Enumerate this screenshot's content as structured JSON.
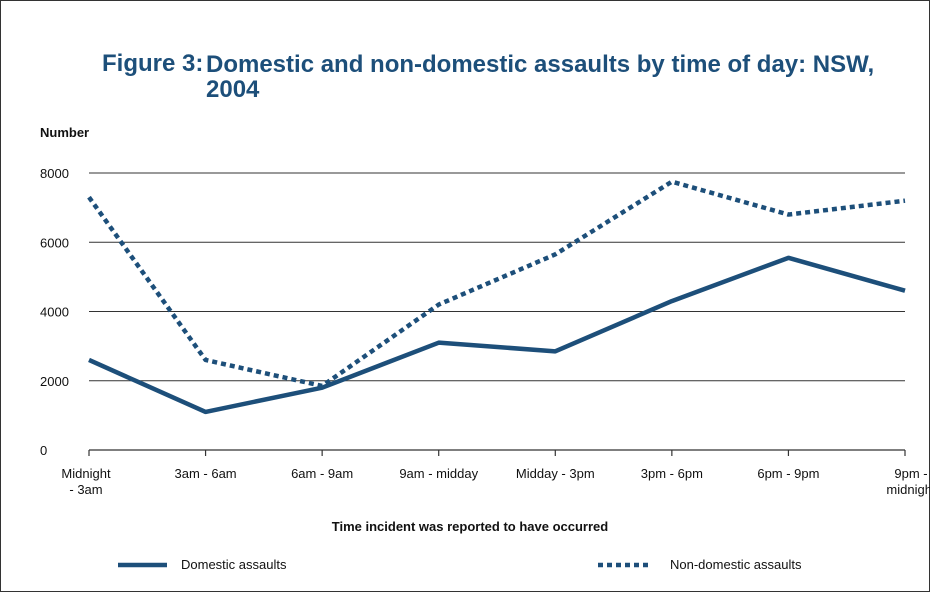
{
  "figure": {
    "number": "Figure 3:",
    "title": "Domestic and non-domestic assaults by time of day: NSW, 2004"
  },
  "colors": {
    "title": "#1d4f7a",
    "series": "#1d4f7a",
    "grid": "#333333"
  },
  "chart_data": {
    "type": "line",
    "title": "Domestic and non-domestic assaults by time of day: NSW, 2004",
    "xlabel": "Time incident was reported to have occurred",
    "ylabel": "Number",
    "ylim": [
      0,
      8000
    ],
    "yticks": [
      0,
      2000,
      4000,
      6000,
      8000
    ],
    "ytick_labels": [
      "0",
      "2000",
      "4000",
      "6000",
      "8000"
    ],
    "categories": [
      [
        "Midnight",
        "- 3am"
      ],
      [
        "3am - 6am"
      ],
      [
        "6am - 9am"
      ],
      [
        "9am - midday"
      ],
      [
        "Midday - 3pm"
      ],
      [
        "3pm - 6pm"
      ],
      [
        "6pm - 9pm"
      ],
      [
        "9pm -",
        "midnight"
      ]
    ],
    "grid": true,
    "legend_position": "bottom",
    "series": [
      {
        "name": "Domestic assaults",
        "style": "solid",
        "values": [
          2600,
          1100,
          1800,
          3100,
          2850,
          4300,
          5550,
          4600
        ]
      },
      {
        "name": "Non-domestic assaults",
        "style": "dotted",
        "values": [
          7300,
          2600,
          1850,
          4200,
          5650,
          7750,
          6800,
          7200
        ]
      }
    ]
  }
}
